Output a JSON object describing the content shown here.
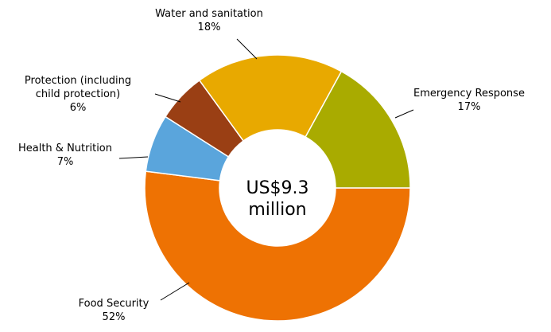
{
  "chart_data": {
    "type": "pie",
    "style": "donut",
    "center_label": [
      "US$9.3",
      "million"
    ],
    "slices": [
      {
        "label": [
          "Emergency Response"
        ],
        "pct_text": "17%",
        "value": 17,
        "color": "#a9ab00"
      },
      {
        "label": [
          "Food Security"
        ],
        "pct_text": "52%",
        "value": 52,
        "color": "#ee7203"
      },
      {
        "label": [
          "Health & Nutrition"
        ],
        "pct_text": "7%",
        "value": 7,
        "color": "#5aa5dc"
      },
      {
        "label": [
          "Protection (including",
          "child protection)"
        ],
        "pct_text": "6%",
        "value": 6,
        "color": "#9a3f14"
      },
      {
        "label": [
          "Water and sanitation"
        ],
        "pct_text": "18%",
        "value": 18,
        "color": "#e8a900"
      }
    ]
  }
}
